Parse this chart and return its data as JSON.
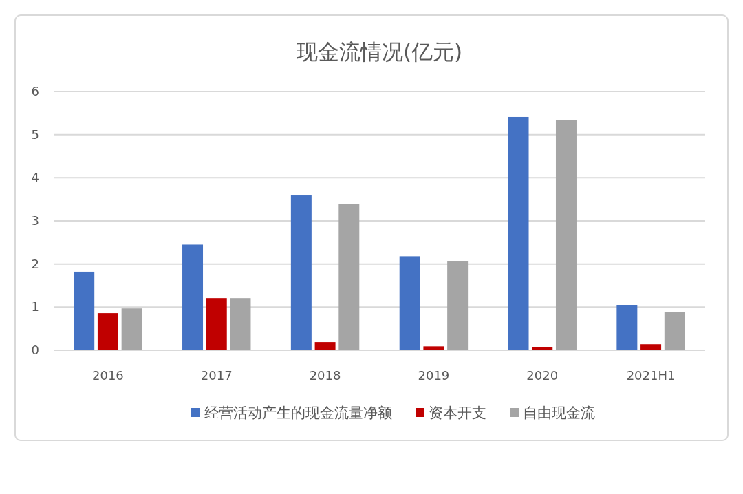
{
  "chart_data": {
    "type": "bar",
    "title": "现金流情况(亿元)",
    "categories": [
      "2016",
      "2017",
      "2018",
      "2019",
      "2020",
      "2021H1"
    ],
    "series": [
      {
        "name": "经营活动产生的现金流量净额",
        "color": "#4472c4",
        "values": [
          1.82,
          2.45,
          3.59,
          2.18,
          5.41,
          1.04
        ]
      },
      {
        "name": "资本开支",
        "color": "#c00000",
        "values": [
          0.86,
          1.21,
          0.19,
          0.09,
          0.07,
          0.14
        ]
      },
      {
        "name": "自由现金流",
        "color": "#a5a5a5",
        "values": [
          0.97,
          1.21,
          3.39,
          2.07,
          5.33,
          0.89
        ]
      }
    ],
    "ylim": [
      0,
      6
    ],
    "yticks": [
      0,
      1,
      2,
      3,
      4,
      5,
      6
    ],
    "grid": "y",
    "legend": "bottom"
  }
}
